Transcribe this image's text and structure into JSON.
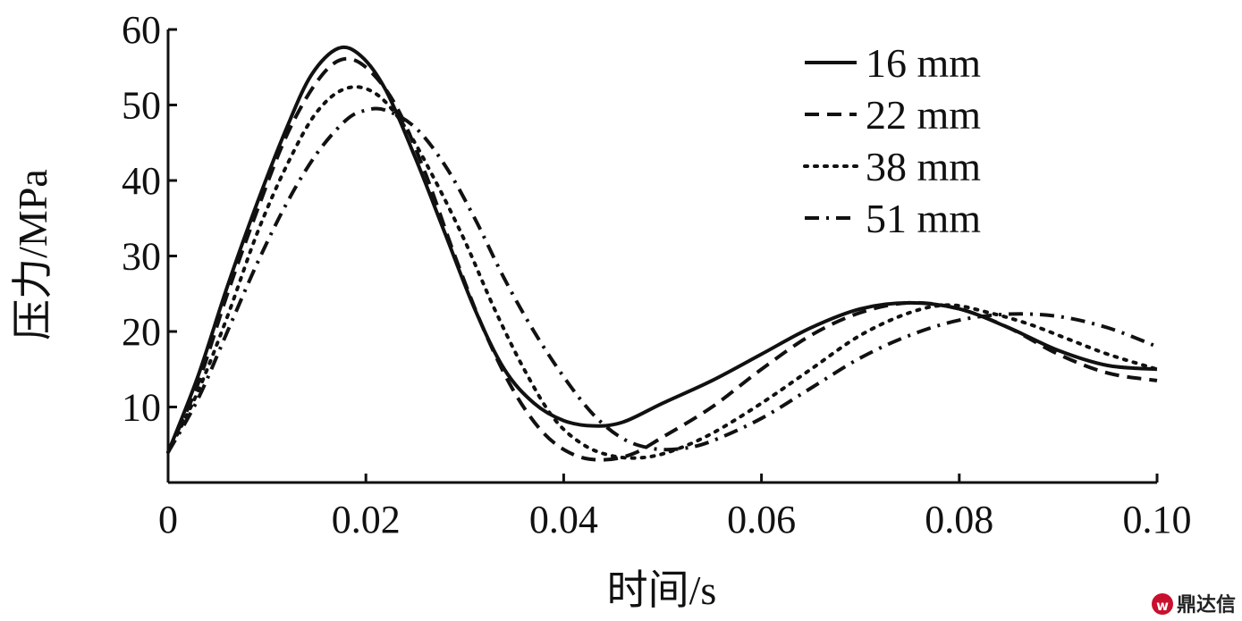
{
  "chart_data": {
    "type": "line",
    "xlabel": "时间/s",
    "ylabel": "压力/MPa",
    "xlim": [
      0,
      0.1
    ],
    "ylim": [
      0,
      60
    ],
    "x_ticks": [
      "0",
      "0.02",
      "0.04",
      "0.06",
      "0.08",
      "0.10"
    ],
    "y_ticks": [
      "10",
      "20",
      "30",
      "40",
      "50",
      "60"
    ],
    "x_tick_values": [
      0,
      0.02,
      0.04,
      0.06,
      0.08,
      0.1
    ],
    "y_tick_values": [
      10,
      20,
      30,
      40,
      50,
      60
    ],
    "grid": false,
    "legend_position": "top-right",
    "series": [
      {
        "name": "16 mm",
        "style": "solid",
        "points": [
          [
            0,
            4
          ],
          [
            0.003,
            14
          ],
          [
            0.006,
            26
          ],
          [
            0.009,
            37
          ],
          [
            0.012,
            47
          ],
          [
            0.0145,
            54
          ],
          [
            0.0172,
            57.5
          ],
          [
            0.0195,
            56.5
          ],
          [
            0.022,
            52
          ],
          [
            0.025,
            43
          ],
          [
            0.028,
            33
          ],
          [
            0.031,
            23
          ],
          [
            0.034,
            15
          ],
          [
            0.037,
            10.5
          ],
          [
            0.04,
            8.2
          ],
          [
            0.043,
            7.5
          ],
          [
            0.046,
            8
          ],
          [
            0.05,
            10.5
          ],
          [
            0.055,
            13.5
          ],
          [
            0.06,
            17
          ],
          [
            0.065,
            20.5
          ],
          [
            0.07,
            23
          ],
          [
            0.075,
            23.8
          ],
          [
            0.08,
            23
          ],
          [
            0.085,
            20.5
          ],
          [
            0.09,
            17.5
          ],
          [
            0.095,
            15.5
          ],
          [
            0.1,
            15
          ]
        ]
      },
      {
        "name": "22 mm",
        "style": "dashed",
        "points": [
          [
            0,
            4
          ],
          [
            0.003,
            13
          ],
          [
            0.006,
            25
          ],
          [
            0.009,
            36
          ],
          [
            0.012,
            46
          ],
          [
            0.015,
            53
          ],
          [
            0.0175,
            56
          ],
          [
            0.02,
            55
          ],
          [
            0.023,
            50
          ],
          [
            0.026,
            41
          ],
          [
            0.029,
            30
          ],
          [
            0.032,
            20
          ],
          [
            0.035,
            12
          ],
          [
            0.038,
            6.5
          ],
          [
            0.041,
            3.7
          ],
          [
            0.044,
            3
          ],
          [
            0.047,
            3.8
          ],
          [
            0.05,
            6
          ],
          [
            0.055,
            10
          ],
          [
            0.06,
            15
          ],
          [
            0.065,
            19.5
          ],
          [
            0.07,
            22.5
          ],
          [
            0.075,
            23.8
          ],
          [
            0.08,
            23
          ],
          [
            0.085,
            20.5
          ],
          [
            0.09,
            17
          ],
          [
            0.095,
            14.5
          ],
          [
            0.1,
            13.5
          ]
        ]
      },
      {
        "name": "38 mm",
        "style": "dotted",
        "points": [
          [
            0,
            4
          ],
          [
            0.003,
            12
          ],
          [
            0.006,
            22
          ],
          [
            0.009,
            33
          ],
          [
            0.012,
            42
          ],
          [
            0.015,
            49
          ],
          [
            0.018,
            52.2
          ],
          [
            0.021,
            51.5
          ],
          [
            0.024,
            47
          ],
          [
            0.027,
            40
          ],
          [
            0.03,
            32
          ],
          [
            0.033,
            23
          ],
          [
            0.036,
            15
          ],
          [
            0.039,
            8.5
          ],
          [
            0.042,
            5
          ],
          [
            0.045,
            3.5
          ],
          [
            0.048,
            3.3
          ],
          [
            0.051,
            4.2
          ],
          [
            0.055,
            6.5
          ],
          [
            0.06,
            10.5
          ],
          [
            0.065,
            15
          ],
          [
            0.07,
            19.5
          ],
          [
            0.075,
            22.5
          ],
          [
            0.079,
            23.5
          ],
          [
            0.083,
            22.5
          ],
          [
            0.087,
            21
          ],
          [
            0.091,
            19
          ],
          [
            0.095,
            17
          ],
          [
            0.1,
            15
          ]
        ]
      },
      {
        "name": "51 mm",
        "style": "dashdot",
        "points": [
          [
            0,
            4
          ],
          [
            0.003,
            11
          ],
          [
            0.006,
            20
          ],
          [
            0.009,
            29
          ],
          [
            0.012,
            37
          ],
          [
            0.015,
            43.5
          ],
          [
            0.018,
            48
          ],
          [
            0.02,
            49.3
          ],
          [
            0.022,
            49.3
          ],
          [
            0.025,
            47
          ],
          [
            0.028,
            42
          ],
          [
            0.031,
            35
          ],
          [
            0.034,
            27
          ],
          [
            0.037,
            20
          ],
          [
            0.04,
            14
          ],
          [
            0.043,
            9
          ],
          [
            0.046,
            5.8
          ],
          [
            0.049,
            4.5
          ],
          [
            0.052,
            4.5
          ],
          [
            0.055,
            5.5
          ],
          [
            0.06,
            8.5
          ],
          [
            0.065,
            12.5
          ],
          [
            0.07,
            16.5
          ],
          [
            0.075,
            19.5
          ],
          [
            0.08,
            21.5
          ],
          [
            0.085,
            22.3
          ],
          [
            0.09,
            22
          ],
          [
            0.095,
            20.5
          ],
          [
            0.1,
            18
          ]
        ]
      }
    ]
  },
  "watermark": {
    "text": "鼎达信",
    "icon": "wanfang-logo-icon",
    "color": "#c8102e"
  }
}
